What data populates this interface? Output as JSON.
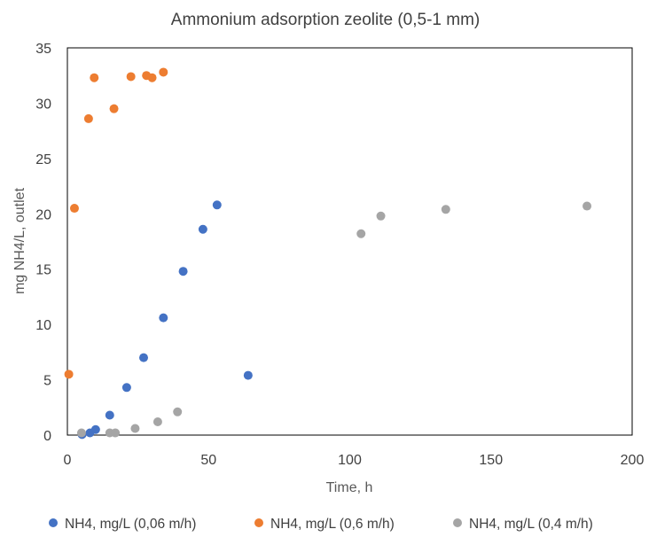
{
  "chart_data": {
    "type": "scatter",
    "title": "Ammonium adsorption zeolite (0,5-1 mm)",
    "xlabel": "Time, h",
    "ylabel": "mg NH4/L, outlet",
    "xlim": [
      0,
      200
    ],
    "ylim": [
      0,
      35
    ],
    "xticks": [
      0,
      50,
      100,
      150,
      200
    ],
    "yticks": [
      0,
      5,
      10,
      15,
      20,
      25,
      30,
      35
    ],
    "grid": false,
    "legend_position": "bottom",
    "series": [
      {
        "name": "NH4, mg/L (0,06 m/h)",
        "color": "#4472C4",
        "x": [
          5.2,
          8,
          10,
          15,
          21,
          27,
          34,
          41,
          48,
          53,
          64
        ],
        "y": [
          0.05,
          0.2,
          0.5,
          1.8,
          4.3,
          7.0,
          10.6,
          14.8,
          18.6,
          20.8,
          5.4
        ]
      },
      {
        "name": "NH4, mg/L (0,6 m/h)",
        "color": "#ED7D31",
        "x": [
          0.5,
          2.5,
          7.5,
          9.5,
          16.5,
          22.5,
          28,
          30,
          34
        ],
        "y": [
          5.5,
          20.5,
          28.6,
          32.3,
          29.5,
          32.4,
          32.5,
          32.3,
          32.8
        ]
      },
      {
        "name": "NH4, mg/L (0,4 m/h)",
        "color": "#A5A5A5",
        "x": [
          5,
          15,
          17,
          24,
          32,
          39,
          104,
          111,
          134,
          184
        ],
        "y": [
          0.2,
          0.2,
          0.2,
          0.6,
          1.2,
          2.1,
          18.2,
          19.8,
          20.4,
          20.7
        ]
      }
    ]
  }
}
